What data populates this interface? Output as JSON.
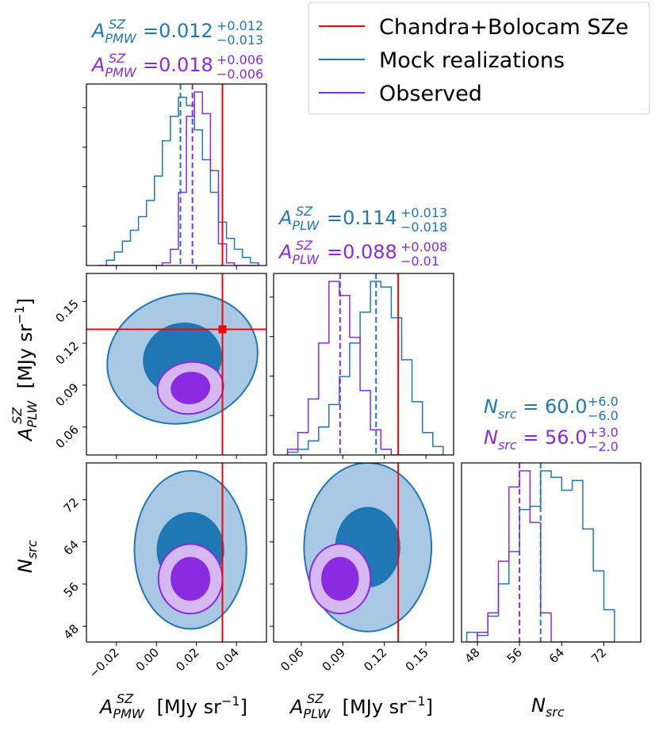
{
  "colors": {
    "mock": "#1f77b4",
    "mock_light": "#a9c8e3",
    "observed": "#8a2be2",
    "observed_light": "#d5b8f2",
    "reference": "#ff0000"
  },
  "legend": {
    "placement": "top-right",
    "entries": [
      "Chandra+Bolocam SZe",
      "Mock realizations",
      "Observed"
    ]
  },
  "stats": {
    "pmw": {
      "mock": {
        "prefix": "A",
        "sup": "SZ",
        "sub": "PMW",
        "value": "=0.012",
        "plus": "+0.012",
        "minus": "−0.013"
      },
      "observed": {
        "prefix": "A",
        "sup": "SZ",
        "sub": "PMW",
        "value": "=0.018",
        "plus": "+0.006",
        "minus": "−0.006"
      }
    },
    "plw": {
      "mock": {
        "prefix": "A",
        "sup": "SZ",
        "sub": "PLW",
        "value": "=0.114",
        "plus": "+0.013",
        "minus": "−0.018"
      },
      "observed": {
        "prefix": "A",
        "sup": "SZ",
        "sub": "PLW",
        "value": "=0.088",
        "plus": "+0.008",
        "minus": "−0.01"
      }
    },
    "nsrc": {
      "mock": {
        "prefix": "N",
        "sup": "",
        "sub": "src",
        "value": " = 60.0",
        "plus": "+6.0",
        "minus": "−6.0"
      },
      "observed": {
        "prefix": "N",
        "sup": "",
        "sub": "src",
        "value": " = 56.0",
        "plus": "+3.0",
        "minus": "−2.0"
      }
    }
  },
  "axis_labels": {
    "x_pmw": {
      "prefix": "A",
      "sup": "SZ",
      "sub": "PMW",
      "unit": " [MJy sr",
      "exp": "−1",
      "close": "]"
    },
    "x_plw": {
      "prefix": "A",
      "sup": "SZ",
      "sub": "PLW",
      "unit": " [MJy sr",
      "exp": "−1",
      "close": "]"
    },
    "x_nsrc": {
      "prefix": "N",
      "sub": "src"
    },
    "y_plw": {
      "prefix": "A",
      "sup": "SZ",
      "sub": "PLW",
      "unit": " [MJy sr",
      "exp": "−1",
      "close": "]"
    },
    "y_nsrc": {
      "prefix": "N",
      "sub": "src"
    }
  },
  "chart_data": {
    "type": "corner",
    "parameters": [
      {
        "key": "pmw",
        "range": [
          -0.035,
          0.055
        ],
        "ticks": [
          -0.02,
          0.0,
          0.02,
          0.04
        ],
        "tick_labels": [
          "−0.02",
          "0.00",
          "0.02",
          "0.04"
        ]
      },
      {
        "key": "plw",
        "range": [
          0.04,
          0.17
        ],
        "ticks": [
          0.06,
          0.09,
          0.12,
          0.15
        ],
        "tick_labels": [
          "0.06",
          "0.09",
          "0.12",
          "0.15"
        ]
      },
      {
        "key": "nsrc",
        "range": [
          45,
          79
        ],
        "ticks": [
          48,
          56,
          64,
          72
        ],
        "tick_labels": [
          "48",
          "56",
          "64",
          "72"
        ]
      }
    ],
    "reference": {
      "name": "Chandra+Bolocam SZe",
      "pmw": 0.033,
      "plw": 0.13
    },
    "histograms": {
      "pmw": {
        "edges": [
          -0.029,
          -0.025,
          -0.021,
          -0.017,
          -0.013,
          -0.009,
          -0.005,
          -0.001,
          0.003,
          0.007,
          0.011,
          0.015,
          0.019,
          0.023,
          0.027,
          0.031,
          0.035,
          0.039,
          0.043,
          0.047,
          0.051
        ],
        "mock": [
          0,
          2,
          5,
          9,
          13,
          18,
          24,
          33,
          46,
          55,
          62,
          59,
          50,
          39,
          27,
          16,
          10,
          6,
          3,
          1
        ],
        "observed": [
          0,
          0,
          0,
          0,
          0,
          0,
          0,
          0,
          1,
          6,
          27,
          55,
          64,
          56,
          35,
          8,
          1,
          0,
          0,
          0
        ],
        "mock_median": 0.012,
        "observed_median": 0.018
      },
      "plw": {
        "edges": [
          0.05,
          0.0575,
          0.065,
          0.0725,
          0.08,
          0.0875,
          0.095,
          0.1025,
          0.11,
          0.1175,
          0.125,
          0.1325,
          0.14,
          0.1475,
          0.155,
          0.1625
        ],
        "mock": [
          1,
          2,
          5,
          10,
          18,
          28,
          40,
          51,
          62,
          60,
          49,
          34,
          19,
          8,
          3
        ],
        "observed": [
          2,
          8,
          20,
          40,
          62,
          57,
          42,
          23,
          9,
          2,
          0,
          0,
          0,
          0,
          0
        ],
        "mock_median": 0.114,
        "observed_median": 0.088
      },
      "nsrc": {
        "edges": [
          46,
          48,
          50,
          52,
          54,
          56,
          58,
          60,
          62,
          64,
          66,
          68,
          70,
          72,
          74
        ],
        "mock": [
          3,
          2,
          8,
          18,
          28,
          41,
          42,
          53,
          51,
          47,
          50,
          35,
          22,
          10
        ],
        "observed": [
          0,
          3,
          9,
          25,
          48,
          53,
          37,
          9,
          0,
          0,
          0,
          0,
          0,
          0
        ],
        "mock_median": 60.0,
        "observed_median": 56.0
      }
    },
    "contours": {
      "plw_vs_pmw": {
        "mock": {
          "center": [
            0.013,
            0.109
          ],
          "outer": [
            0.038,
            0.046
          ],
          "inner": [
            0.0195,
            0.025
          ],
          "angle": 16
        },
        "observed": {
          "center": [
            0.017,
            0.088
          ],
          "outer": [
            0.0165,
            0.0185
          ],
          "inner": [
            0.0095,
            0.011
          ],
          "angle": 8
        }
      },
      "nsrc_vs_pmw": {
        "mock": {
          "center": [
            0.017,
            62.5
          ],
          "outer": [
            0.028,
            15.0
          ],
          "inner": [
            0.0165,
            7.0
          ],
          "angle": 0
        },
        "observed": {
          "center": [
            0.017,
            57.0
          ],
          "outer": [
            0.016,
            6.6
          ],
          "inner": [
            0.0095,
            4.0
          ],
          "angle": 0
        }
      },
      "nsrc_vs_plw": {
        "mock": {
          "center": [
            0.108,
            63.0
          ],
          "outer": [
            0.046,
            16.0
          ],
          "inner": [
            0.023,
            7.5
          ],
          "angle": 0
        },
        "observed": {
          "center": [
            0.088,
            57.0
          ],
          "outer": [
            0.022,
            6.6
          ],
          "inner": [
            0.013,
            4.0
          ],
          "angle": 0
        }
      }
    }
  }
}
